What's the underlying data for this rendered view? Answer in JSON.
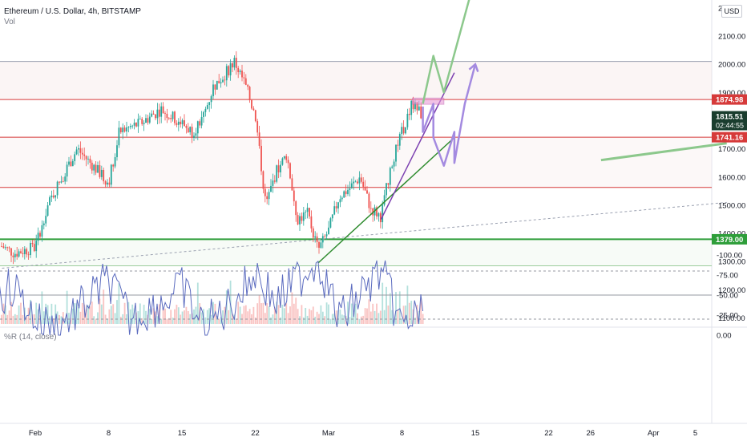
{
  "header": {
    "title": "Ethereum / U.S. Dollar, 4h, BITSTAMP",
    "volume_label": "Vol",
    "indicator_label": "%R (14, close)",
    "currency_badge": "USD"
  },
  "colors": {
    "up": "#26a69a",
    "down": "#ef5350",
    "williams_line": "#5b6bbf",
    "williams_band": "#e9dcfb",
    "support_green": "#2e9e3a",
    "resistance_red": "#d63a3a",
    "purple_projection": "#a48ae0",
    "green_projection": "#8cc88c"
  },
  "chart_data": [
    {
      "type": "candlestick",
      "title": "Ethereum / U.S. Dollar, 4h, BITSTAMP",
      "ylim": [
        1050,
        2250
      ],
      "y_ticks": [
        1100,
        1200,
        1300,
        1400,
        1500,
        1600,
        1700,
        1800,
        1900,
        2000,
        2100,
        "2…"
      ],
      "x_ticks": [
        "Feb",
        "8",
        "15",
        "22",
        "Mar",
        "8",
        "15",
        "22",
        "26",
        "Apr",
        "5"
      ],
      "price_labels": [
        {
          "value": 1874.98,
          "text": "1874.98",
          "color": "#d63a3a"
        },
        {
          "value": 1815.51,
          "text": "1815.51",
          "countdown": "02:44:55",
          "color": "#1a3d2e"
        },
        {
          "value": 1741.16,
          "text": "1741.16",
          "color": "#d63a3a"
        },
        {
          "value": 1379.0,
          "text": "1379.00",
          "color": "#2e9e3a"
        }
      ],
      "horizontal_levels": [
        {
          "value": 2010,
          "color": "#9aa0b0"
        },
        {
          "value": 1874.98,
          "color": "#d63a3a"
        },
        {
          "value": 1741.16,
          "color": "#d63a3a"
        },
        {
          "value": 1563,
          "color": "#d63a3a"
        },
        {
          "value": 1379.0,
          "color": "#2e9e3a"
        },
        {
          "value": 1285,
          "color": "#9ccc9c"
        }
      ],
      "close_path": [
        {
          "date": "2021-01-27",
          "price": 1250
        },
        {
          "date": "2021-01-28",
          "price": 1370
        },
        {
          "date": "2021-01-30",
          "price": 1330
        },
        {
          "date": "2021-02-01",
          "price": 1350
        },
        {
          "date": "2021-02-02",
          "price": 1480
        },
        {
          "date": "2021-02-03",
          "price": 1560
        },
        {
          "date": "2021-02-05",
          "price": 1700
        },
        {
          "date": "2021-02-07",
          "price": 1620
        },
        {
          "date": "2021-02-08",
          "price": 1580
        },
        {
          "date": "2021-02-09",
          "price": 1760
        },
        {
          "date": "2021-02-11",
          "price": 1790
        },
        {
          "date": "2021-02-13",
          "price": 1840
        },
        {
          "date": "2021-02-15",
          "price": 1790
        },
        {
          "date": "2021-02-16",
          "price": 1760
        },
        {
          "date": "2021-02-17",
          "price": 1810
        },
        {
          "date": "2021-02-18",
          "price": 1920
        },
        {
          "date": "2021-02-19",
          "price": 1960
        },
        {
          "date": "2021-02-20",
          "price": 2010
        },
        {
          "date": "2021-02-21",
          "price": 1930
        },
        {
          "date": "2021-02-22",
          "price": 1820
        },
        {
          "date": "2021-02-23",
          "price": 1500
        },
        {
          "date": "2021-02-24",
          "price": 1620
        },
        {
          "date": "2021-02-25",
          "price": 1680
        },
        {
          "date": "2021-02-26",
          "price": 1450
        },
        {
          "date": "2021-02-27",
          "price": 1470
        },
        {
          "date": "2021-02-28",
          "price": 1340
        },
        {
          "date": "2021-03-01",
          "price": 1410
        },
        {
          "date": "2021-03-02",
          "price": 1530
        },
        {
          "date": "2021-03-03",
          "price": 1560
        },
        {
          "date": "2021-03-04",
          "price": 1600
        },
        {
          "date": "2021-03-05",
          "price": 1490
        },
        {
          "date": "2021-03-06",
          "price": 1460
        },
        {
          "date": "2021-03-07",
          "price": 1650
        },
        {
          "date": "2021-03-08",
          "price": 1760
        },
        {
          "date": "2021-03-09",
          "price": 1860
        },
        {
          "date": "2021-03-10",
          "price": 1815.51
        }
      ],
      "drawings": {
        "purple_trendline": [
          [
            "2021-03-06",
            1450
          ],
          [
            "2021-03-13",
            1970
          ]
        ],
        "green_trendline": [
          [
            "2021-02-28",
            1295
          ],
          [
            "2021-03-13",
            1740
          ]
        ],
        "dotted_trendline": [
          [
            "2021-01-27",
            1270
          ],
          [
            "2021-04-08",
            1510
          ]
        ],
        "green_line_right": [
          [
            "2021-03-27",
            1660
          ],
          [
            "2021-04-08",
            1720
          ]
        ],
        "purple_zigzag": [
          [
            "2021-03-10",
            1850
          ],
          [
            "2021-03-10",
            1760
          ],
          [
            "2021-03-11",
            1860
          ],
          [
            "2021-03-11",
            1740
          ],
          [
            "2021-03-12",
            1640
          ],
          [
            "2021-03-13",
            1760
          ],
          [
            "2021-03-13",
            1650
          ],
          [
            "2021-03-14",
            1860
          ],
          [
            "2021-03-15",
            2000
          ]
        ],
        "green_zigzag": [
          [
            "2021-03-10",
            1860
          ],
          [
            "2021-03-11",
            2030
          ],
          [
            "2021-03-12",
            1900
          ],
          [
            "2021-03-15",
            2310
          ]
        ],
        "pink_box": {
          "from": "2021-03-09",
          "to": "2021-03-12",
          "low": 1858,
          "high": 1880
        }
      }
    },
    {
      "type": "line",
      "title": "%R (14, close)",
      "ylim": [
        -100,
        0
      ],
      "y_ticks": [
        "0.00",
        "-25.00",
        "-50.00",
        "-75.00",
        "-100.00"
      ],
      "band": [
        -20,
        -80
      ],
      "series": [
        {
          "x": [
            "2021-01-27",
            "2021-01-30",
            "2021-02-01",
            "2021-02-03",
            "2021-02-05",
            "2021-02-08",
            "2021-02-10",
            "2021-02-13",
            "2021-02-15",
            "2021-02-17",
            "2021-02-19",
            "2021-02-21",
            "2021-02-22",
            "2021-02-24",
            "2021-02-26",
            "2021-02-28",
            "2021-03-02",
            "2021-03-04",
            "2021-03-06",
            "2021-03-08",
            "2021-03-10"
          ],
          "values": [
            -40,
            -60,
            -20,
            -10,
            -30,
            -70,
            -20,
            -40,
            -60,
            -10,
            -30,
            -60,
            -80,
            -40,
            -70,
            -95,
            -20,
            -50,
            -80,
            -10,
            -30
          ]
        }
      ]
    }
  ]
}
